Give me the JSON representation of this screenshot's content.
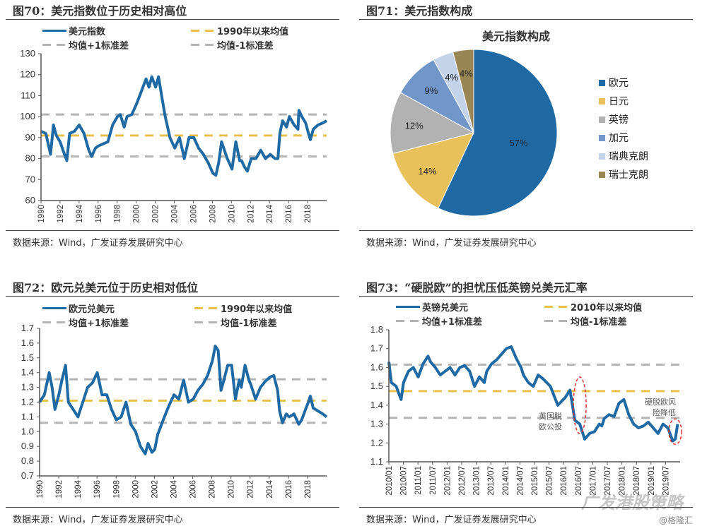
{
  "watermark": {
    "text": "广发港股策略",
    "credit": "@格隆汇"
  },
  "colors": {
    "line": "#1f6aa5",
    "mean": "#e8c04a",
    "std": "#b5b5b5",
    "axis": "#555555"
  },
  "panels": [
    {
      "title": "图70：美元指数位于历史相对高位",
      "source": "数据来源：Wind，广发证券发展研究中心",
      "legend": [
        "美元指数",
        "1990年以来均值",
        "均值+1标准差",
        "均值-1标准差"
      ]
    },
    {
      "title": "图71：美元指数构成",
      "source": "数据来源：Wind，广发证券发展研究中心"
    },
    {
      "title": "图72：欧元兑美元位于历史相对低位",
      "source": "数据来源：Wind，广发证券发展研究中心",
      "legend": [
        "欧元兑美元",
        "1990年以来均值",
        "均值+1标准差",
        "均值-1标准差"
      ]
    },
    {
      "title": "图73：“硬脱欧”的担忧压低英镑兑美元汇率",
      "source": "数据来源：Wind，广发证券发展研究中心",
      "legend": [
        "英镑兑美元",
        "2010年以来均值",
        "均值+1标准差",
        "均值-1标准差"
      ],
      "annotations": [
        "英国脱\n欧公投",
        "硬脱欧风\n险降低"
      ]
    }
  ],
  "chart_data": [
    {
      "type": "line",
      "title": "美元指数位于历史相对高位",
      "xlabel": "",
      "ylabel": "",
      "ylim": [
        60,
        130
      ],
      "yticks": [
        60,
        70,
        80,
        90,
        100,
        110,
        120,
        130
      ],
      "xlim": [
        1990,
        2019.9
      ],
      "xticks": [
        "1990",
        "1992",
        "1994",
        "1996",
        "1998",
        "2000",
        "2002",
        "2004",
        "2006",
        "2008",
        "2010",
        "2012",
        "2014",
        "2016",
        "2018"
      ],
      "series": [
        {
          "name": "美元指数",
          "x": [
            1990,
            1990.5,
            1991,
            1991.3,
            1991.6,
            1992,
            1992.3,
            1992.7,
            1993,
            1993.5,
            1994,
            1994.5,
            1995,
            1995.3,
            1995.7,
            1996,
            1996.5,
            1997,
            1997.5,
            1998,
            1998.3,
            1998.7,
            1999,
            1999.5,
            2000,
            2000.5,
            2001,
            2001.3,
            2001.6,
            2002,
            2002.3,
            2002.7,
            2003,
            2003.5,
            2004,
            2004.5,
            2005,
            2005.5,
            2006,
            2006.5,
            2007,
            2007.5,
            2008,
            2008.3,
            2008.6,
            2008.9,
            2009.2,
            2009.5,
            2010,
            2010.4,
            2010.8,
            2011,
            2011.3,
            2011.6,
            2012,
            2012.5,
            2013,
            2013.5,
            2014,
            2014.5,
            2014.8,
            2015,
            2015.3,
            2015.7,
            2016,
            2016.5,
            2016.9,
            2017,
            2017.3,
            2017.7,
            2018,
            2018.2,
            2018.5,
            2019,
            2019.5,
            2019.9
          ],
          "values": [
            93,
            92,
            82,
            96,
            91,
            88,
            84,
            79,
            92,
            93,
            96,
            92,
            84,
            81,
            85,
            86,
            87,
            88,
            96,
            100,
            101,
            95,
            100,
            101,
            106,
            112,
            118,
            114,
            119,
            114,
            119,
            108,
            100,
            90,
            85,
            90,
            80,
            90,
            90,
            85,
            82,
            78,
            73,
            72,
            78,
            88,
            84,
            80,
            75,
            88,
            79,
            79,
            76,
            74,
            80,
            80,
            84,
            80,
            82,
            80,
            80,
            92,
            98,
            95,
            100,
            96,
            94,
            103,
            100,
            97,
            92,
            89,
            94,
            96,
            97,
            98
          ]
        }
      ],
      "reference_lines": [
        {
          "name": "1990年以来均值",
          "value": 91
        },
        {
          "name": "均值+1标准差",
          "value": 101
        },
        {
          "name": "均值-1标准差",
          "value": 81
        }
      ]
    },
    {
      "type": "pie",
      "title": "美元指数构成",
      "categories": [
        "欧元",
        "日元",
        "英镑",
        "加元",
        "瑞典克朗",
        "瑞士克朗"
      ],
      "values": [
        57,
        14,
        12,
        9,
        4,
        4
      ],
      "labels": [
        "57%",
        "14%",
        "12%",
        "9%",
        "4%",
        "4%"
      ],
      "colors": [
        "#1f6aa5",
        "#e8c15a",
        "#b2b2b2",
        "#7196c9",
        "#c3d3ea",
        "#9a8655"
      ],
      "legend_position": "right"
    },
    {
      "type": "line",
      "title": "欧元兑美元位于历史相对低位",
      "ylim": [
        0.7,
        1.7
      ],
      "yticks": [
        "0.7",
        "0.8",
        "0.9",
        "1.0",
        "1.1",
        "1.2",
        "1.3",
        "1.4",
        "1.5",
        "1.6",
        "1.7"
      ],
      "xlim": [
        1990,
        2019.9
      ],
      "xticks": [
        "1990",
        "1992",
        "1994",
        "1996",
        "1998",
        "2000",
        "2002",
        "2004",
        "2006",
        "2008",
        "2010",
        "2012",
        "2014",
        "2016",
        "2018"
      ],
      "series": [
        {
          "name": "欧元兑美元",
          "x": [
            1990,
            1990.5,
            1991,
            1991.3,
            1991.6,
            1992,
            1992.3,
            1992.7,
            1993,
            1993.5,
            1994,
            1994.5,
            1995,
            1995.5,
            1996,
            1996.5,
            1997,
            1997.5,
            1998,
            1998.5,
            1999,
            1999.5,
            2000,
            2000.5,
            2001,
            2001.3,
            2001.7,
            2002,
            2002.3,
            2003,
            2003.5,
            2004,
            2004.5,
            2005,
            2005.5,
            2006,
            2006.5,
            2007,
            2007.5,
            2008,
            2008.3,
            2008.6,
            2008.9,
            2009.2,
            2009.6,
            2010,
            2010.4,
            2010.8,
            2011,
            2011.4,
            2011.8,
            2012,
            2012.5,
            2013,
            2013.5,
            2014,
            2014.4,
            2014.8,
            2015,
            2015.3,
            2015.7,
            2016,
            2016.5,
            2017,
            2017.3,
            2017.7,
            2018,
            2018.2,
            2018.5,
            2019,
            2019.5,
            2019.9
          ],
          "values": [
            1.2,
            1.25,
            1.4,
            1.3,
            1.15,
            1.25,
            1.34,
            1.45,
            1.2,
            1.15,
            1.1,
            1.2,
            1.3,
            1.33,
            1.4,
            1.25,
            1.25,
            1.15,
            1.08,
            1.1,
            1.2,
            1.05,
            1.0,
            0.9,
            0.85,
            0.92,
            0.86,
            0.88,
            0.98,
            1.1,
            1.18,
            1.25,
            1.22,
            1.35,
            1.2,
            1.22,
            1.28,
            1.32,
            1.38,
            1.48,
            1.58,
            1.55,
            1.28,
            1.35,
            1.45,
            1.45,
            1.22,
            1.35,
            1.3,
            1.45,
            1.35,
            1.32,
            1.22,
            1.3,
            1.34,
            1.37,
            1.38,
            1.28,
            1.14,
            1.06,
            1.12,
            1.1,
            1.12,
            1.05,
            1.08,
            1.15,
            1.2,
            1.24,
            1.16,
            1.14,
            1.12,
            1.1
          ]
        }
      ],
      "reference_lines": [
        {
          "name": "1990年以来均值",
          "value": 1.21
        },
        {
          "name": "均值+1标准差",
          "value": 1.355
        },
        {
          "name": "均值-1标准差",
          "value": 1.06
        }
      ]
    },
    {
      "type": "line",
      "title": "“硬脱欧”的担忧压低英镑兑美元汇率",
      "ylim": [
        1.1,
        1.8
      ],
      "yticks": [
        "1.1",
        "1.2",
        "1.3",
        "1.4",
        "1.5",
        "1.6",
        "1.7",
        "1.8"
      ],
      "xlim": [
        0,
        119
      ],
      "xticks": [
        "2010/01",
        "2010/07",
        "2011/01",
        "2011/07",
        "2012/01",
        "2012/07",
        "2013/01",
        "2013/07",
        "2014/01",
        "2014/07",
        "2015/01",
        "2015/07",
        "2016/01",
        "2016/07",
        "2017/01",
        "2017/07",
        "2018/01",
        "2018/07",
        "2019/01",
        "2019/07"
      ],
      "series": [
        {
          "name": "英镑兑美元",
          "x": [
            0,
            1,
            3,
            5,
            6,
            8,
            10,
            12,
            14,
            16,
            17,
            19,
            21,
            23,
            25,
            27,
            29,
            31,
            33,
            35,
            37,
            39,
            40,
            42,
            44,
            46,
            48,
            50,
            52,
            54,
            55,
            57,
            59,
            61,
            63,
            66,
            69,
            72,
            74,
            76,
            78,
            80,
            82,
            84,
            86,
            87,
            88,
            90,
            92,
            94,
            96,
            98,
            100,
            102,
            104,
            106,
            108,
            110,
            112,
            114,
            116,
            117,
            118
          ],
          "values": [
            1.63,
            1.52,
            1.5,
            1.43,
            1.52,
            1.58,
            1.6,
            1.55,
            1.62,
            1.66,
            1.63,
            1.6,
            1.56,
            1.58,
            1.6,
            1.56,
            1.6,
            1.61,
            1.58,
            1.5,
            1.55,
            1.52,
            1.58,
            1.62,
            1.64,
            1.67,
            1.7,
            1.71,
            1.65,
            1.6,
            1.56,
            1.52,
            1.5,
            1.56,
            1.54,
            1.5,
            1.4,
            1.44,
            1.48,
            1.32,
            1.3,
            1.22,
            1.25,
            1.26,
            1.3,
            1.29,
            1.33,
            1.35,
            1.34,
            1.41,
            1.43,
            1.35,
            1.3,
            1.28,
            1.29,
            1.31,
            1.28,
            1.25,
            1.3,
            1.28,
            1.21,
            1.22,
            1.3
          ]
        }
      ],
      "reference_lines": [
        {
          "name": "2010年以来均值",
          "value": 1.475
        },
        {
          "name": "均值+1标准差",
          "value": 1.615
        },
        {
          "name": "均值-1标准差",
          "value": 1.333
        }
      ]
    }
  ]
}
